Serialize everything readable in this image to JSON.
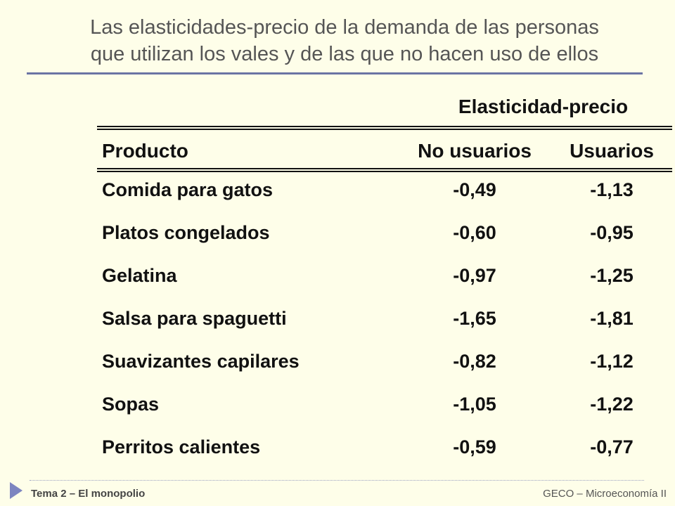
{
  "title": {
    "line1": "Las elasticidades-precio de la demanda de las personas",
    "line2": "que utilizan los vales y de las que no hacen uso de ellos"
  },
  "table": {
    "group_header": "Elasticidad-precio",
    "columns": [
      "Producto",
      "No usuarios",
      "Usuarios"
    ],
    "rows": [
      [
        "Comida para gatos",
        "-0,49",
        "-1,13"
      ],
      [
        "Platos congelados",
        "-0,60",
        "-0,95"
      ],
      [
        "Gelatina",
        "-0,97",
        "-1,25"
      ],
      [
        "Salsa para spaguetti",
        "-1,65",
        "-1,81"
      ],
      [
        "Suavizantes capilares",
        "-0,82",
        "-1,12"
      ],
      [
        "Sopas",
        "-1,05",
        "-1,22"
      ],
      [
        "Perritos calientes",
        "-0,59",
        "-0,77"
      ]
    ]
  },
  "footer": {
    "left": "Tema 2 – El monopolio",
    "right": "GECO – Microeconomía II"
  },
  "colors": {
    "background": "#fefee9",
    "title_rule": "#6b74a4",
    "footer_arrow": "#7d85c0"
  }
}
